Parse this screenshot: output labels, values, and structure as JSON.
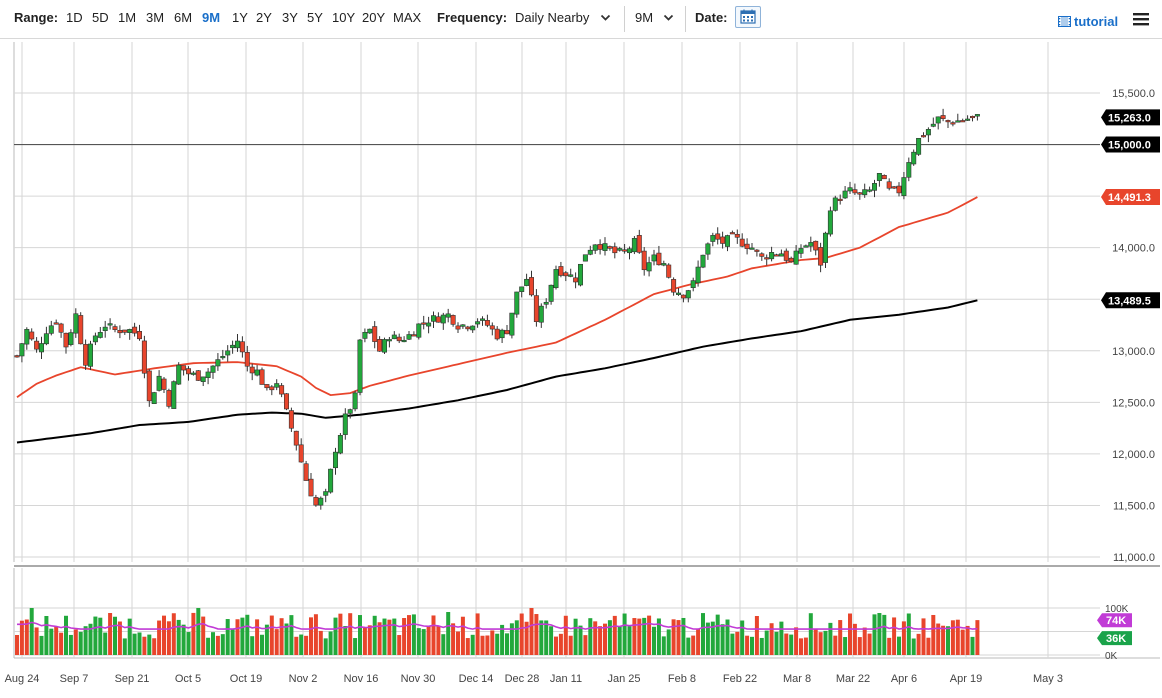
{
  "toolbar": {
    "range_label": "Range:",
    "ranges": [
      "1D",
      "5D",
      "1M",
      "3M",
      "6M",
      "9M",
      "1Y",
      "2Y",
      "3Y",
      "5Y",
      "10Y",
      "20Y",
      "MAX"
    ],
    "active_range": "9M",
    "frequency_label": "Frequency:",
    "frequency_value": "Daily Nearby",
    "period_value": "9M",
    "date_label": "Date:",
    "tutorial_label": "tutorial",
    "accent_color": "#1a6fc9"
  },
  "chart_data": {
    "type": "candlestick",
    "x_ticks": [
      "Aug 24",
      "Sep 7",
      "Sep 21",
      "Oct 5",
      "Oct 19",
      "Nov 2",
      "Nov 16",
      "Nov 30",
      "Dec 14",
      "Dec 28",
      "Jan 11",
      "Jan 25",
      "Feb 8",
      "Feb 22",
      "Mar 8",
      "Mar 22",
      "Apr 6",
      "Apr 19",
      "May 3"
    ],
    "y_ticks": [
      "11,000.0",
      "11,500.0",
      "12,000.0",
      "12,500.0",
      "13,000.0",
      "13,500.0",
      "14,000.0",
      "14,500.0",
      "15,000.0",
      "15,500.0"
    ],
    "ylim": [
      11000,
      15500
    ],
    "horizontal_line": 15000,
    "price_labels": [
      {
        "text": "15,263.0",
        "value": 15263,
        "color": "#000000",
        "text_color": "#ffffff"
      },
      {
        "text": "15,000.0",
        "value": 15000,
        "color": "#000000",
        "text_color": "#ffffff"
      },
      {
        "text": "14,491.3",
        "value": 14491.3,
        "color": "#e8452c",
        "text_color": "#ffffff"
      },
      {
        "text": "13,489.5",
        "value": 13489.5,
        "color": "#000000",
        "text_color": "#ffffff"
      }
    ],
    "ma_fast": {
      "color": "#e8452c",
      "anchors": [
        [
          0,
          12550
        ],
        [
          4,
          12680
        ],
        [
          8,
          12760
        ],
        [
          13,
          12840
        ],
        [
          20,
          12770
        ],
        [
          28,
          12830
        ],
        [
          36,
          12880
        ],
        [
          45,
          12890
        ],
        [
          53,
          12850
        ],
        [
          58,
          12750
        ],
        [
          61,
          12640
        ],
        [
          64,
          12570
        ],
        [
          68,
          12590
        ],
        [
          72,
          12660
        ],
        [
          80,
          12760
        ],
        [
          90,
          12870
        ],
        [
          100,
          12980
        ],
        [
          110,
          13080
        ],
        [
          120,
          13300
        ],
        [
          130,
          13550
        ],
        [
          138,
          13650
        ],
        [
          145,
          13720
        ],
        [
          150,
          13800
        ],
        [
          160,
          13880
        ],
        [
          165,
          13900
        ],
        [
          172,
          14000
        ],
        [
          180,
          14200
        ],
        [
          190,
          14340
        ],
        [
          196,
          14490
        ]
      ]
    },
    "ma_slow": {
      "color": "#000000",
      "anchors": [
        [
          0,
          12110
        ],
        [
          15,
          12200
        ],
        [
          25,
          12280
        ],
        [
          35,
          12310
        ],
        [
          45,
          12380
        ],
        [
          52,
          12400
        ],
        [
          58,
          12390
        ],
        [
          63,
          12350
        ],
        [
          70,
          12380
        ],
        [
          80,
          12440
        ],
        [
          90,
          12520
        ],
        [
          100,
          12620
        ],
        [
          110,
          12750
        ],
        [
          120,
          12830
        ],
        [
          130,
          12930
        ],
        [
          140,
          13040
        ],
        [
          150,
          13120
        ],
        [
          160,
          13190
        ],
        [
          170,
          13300
        ],
        [
          180,
          13350
        ],
        [
          190,
          13420
        ],
        [
          196,
          13490
        ]
      ]
    },
    "candle_anchors": [
      [
        0,
        12950
      ],
      [
        2,
        13200
      ],
      [
        4,
        13000
      ],
      [
        6,
        13200
      ],
      [
        8,
        13300
      ],
      [
        10,
        13050
      ],
      [
        12,
        13350
      ],
      [
        13,
        13100
      ],
      [
        14,
        12900
      ],
      [
        16,
        13150
      ],
      [
        18,
        13250
      ],
      [
        20,
        13200
      ],
      [
        23,
        13200
      ],
      [
        25,
        13150
      ],
      [
        27,
        12500
      ],
      [
        29,
        12750
      ],
      [
        31,
        12500
      ],
      [
        33,
        12850
      ],
      [
        35,
        12780
      ],
      [
        37,
        12750
      ],
      [
        39,
        12800
      ],
      [
        41,
        12900
      ],
      [
        43,
        13000
      ],
      [
        45,
        13100
      ],
      [
        47,
        12850
      ],
      [
        49,
        12800
      ],
      [
        51,
        12600
      ],
      [
        53,
        12700
      ],
      [
        55,
        12400
      ],
      [
        57,
        12100
      ],
      [
        59,
        11750
      ],
      [
        61,
        11500
      ],
      [
        63,
        11600
      ],
      [
        65,
        12050
      ],
      [
        67,
        12350
      ],
      [
        69,
        12550
      ],
      [
        70,
        13100
      ],
      [
        72,
        13200
      ],
      [
        74,
        13000
      ],
      [
        76,
        13150
      ],
      [
        78,
        13100
      ],
      [
        80,
        13150
      ],
      [
        82,
        13250
      ],
      [
        84,
        13300
      ],
      [
        86,
        13320
      ],
      [
        88,
        13350
      ],
      [
        90,
        13250
      ],
      [
        92,
        13250
      ],
      [
        94,
        13300
      ],
      [
        96,
        13250
      ],
      [
        98,
        13150
      ],
      [
        100,
        13200
      ],
      [
        102,
        13550
      ],
      [
        104,
        13700
      ],
      [
        106,
        13300
      ],
      [
        108,
        13500
      ],
      [
        110,
        13800
      ],
      [
        112,
        13750
      ],
      [
        114,
        13700
      ],
      [
        116,
        13950
      ],
      [
        118,
        14050
      ],
      [
        120,
        14000
      ],
      [
        122,
        13950
      ],
      [
        124,
        13950
      ],
      [
        126,
        14050
      ],
      [
        128,
        13800
      ],
      [
        130,
        13900
      ],
      [
        132,
        13850
      ],
      [
        134,
        13600
      ],
      [
        136,
        13550
      ],
      [
        138,
        13650
      ],
      [
        140,
        13950
      ],
      [
        142,
        14100
      ],
      [
        144,
        14050
      ],
      [
        146,
        14100
      ],
      [
        148,
        14050
      ],
      [
        150,
        14000
      ],
      [
        152,
        13900
      ],
      [
        154,
        13950
      ],
      [
        156,
        13950
      ],
      [
        158,
        13850
      ],
      [
        160,
        14000
      ],
      [
        162,
        14050
      ],
      [
        164,
        13850
      ],
      [
        166,
        14400
      ],
      [
        168,
        14500
      ],
      [
        170,
        14550
      ],
      [
        172,
        14500
      ],
      [
        174,
        14550
      ],
      [
        176,
        14700
      ],
      [
        178,
        14550
      ],
      [
        180,
        14550
      ],
      [
        182,
        14850
      ],
      [
        184,
        15050
      ],
      [
        186,
        15150
      ],
      [
        188,
        15250
      ],
      [
        190,
        15220
      ],
      [
        192,
        15230
      ],
      [
        194,
        15250
      ],
      [
        196,
        15263
      ]
    ],
    "volume_ylim": [
      0,
      100000
    ],
    "volume_ticks": [
      "100K",
      "0K"
    ],
    "volume_labels": [
      {
        "text": "74K",
        "value": 74000,
        "color": "#c13bd6"
      },
      {
        "text": "36K",
        "value": 36000,
        "color": "#1aa34a"
      }
    ],
    "colors": {
      "up": "#22a83c",
      "down": "#e8452c",
      "volume_ma": "#c13bd6",
      "grid": "#d6d6d6"
    }
  }
}
